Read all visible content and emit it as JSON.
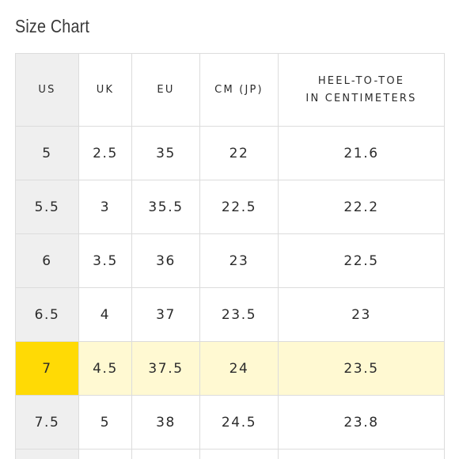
{
  "title": "Size Chart",
  "table": {
    "headers": [
      {
        "lines": [
          "US"
        ]
      },
      {
        "lines": [
          "UK"
        ]
      },
      {
        "lines": [
          "EU"
        ]
      },
      {
        "lines": [
          "CM (JP)"
        ]
      },
      {
        "lines": [
          "HEEL-TO-TOE",
          "IN CENTIMETERS"
        ]
      }
    ],
    "rows": [
      {
        "cells": [
          "5",
          "2.5",
          "35",
          "22",
          "21.6"
        ],
        "highlighted": false
      },
      {
        "cells": [
          "5.5",
          "3",
          "35.5",
          "22.5",
          "22.2"
        ],
        "highlighted": false
      },
      {
        "cells": [
          "6",
          "3.5",
          "36",
          "23",
          "22.5"
        ],
        "highlighted": false
      },
      {
        "cells": [
          "6.5",
          "4",
          "37",
          "23.5",
          "23"
        ],
        "highlighted": false
      },
      {
        "cells": [
          "7",
          "4.5",
          "37.5",
          "24",
          "23.5"
        ],
        "highlighted": true
      },
      {
        "cells": [
          "7.5",
          "5",
          "38",
          "24.5",
          "23.8"
        ],
        "highlighted": false
      }
    ]
  },
  "colors": {
    "highlight_us_cell": "#ffda05",
    "highlight_row": "#fff9d2",
    "us_column_background": "#efefef",
    "border": "#dcdcdc",
    "text": "#2b2b2b"
  }
}
